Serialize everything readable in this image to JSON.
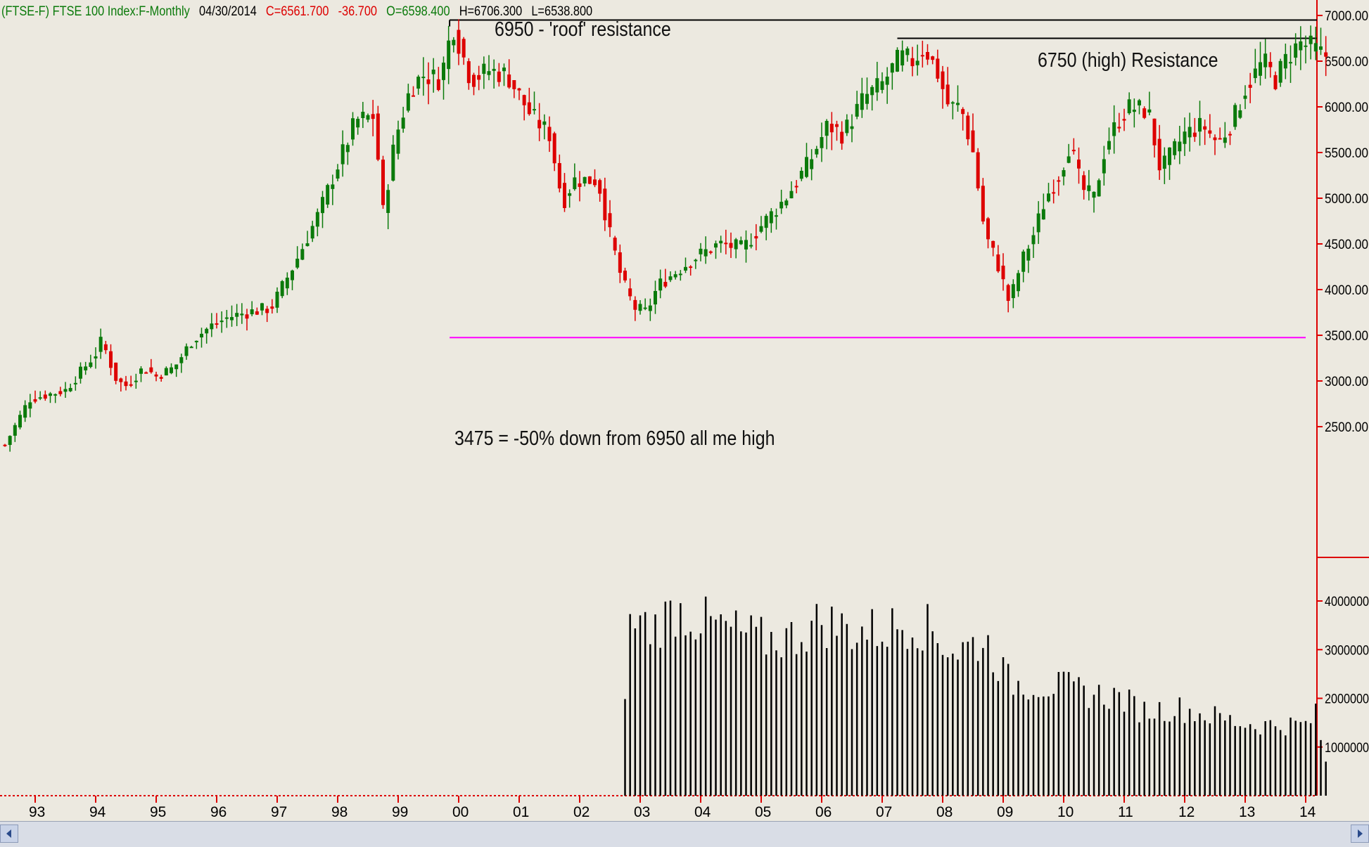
{
  "header": {
    "symbol": "(FTSE-F) FTSE 100 Index:F-Monthly",
    "date": "04/30/2014",
    "close": "C=6561.700",
    "change": "-36.700",
    "open": "O=6598.400",
    "high": "H=6706.300",
    "low": "L=6538.800",
    "colors": {
      "symbol": "#0b7a0b",
      "date": "#000000",
      "close": "#dd0000",
      "change": "#dd0000",
      "open": "#0b7a0b",
      "high": "#000000",
      "low": "#000000"
    }
  },
  "annotations": {
    "roof": "6950 - 'roof' resistance",
    "high_res": "6750 (high) Resistance",
    "support": "3475 = -50% down from 6950 all   me high"
  },
  "chart_data": {
    "type": "candlestick",
    "title": "(FTSE-F) FTSE 100 Index:F-Monthly",
    "interval": "Monthly",
    "x_tick_labels": [
      "93",
      "94",
      "95",
      "96",
      "97",
      "98",
      "99",
      "00",
      "01",
      "02",
      "03",
      "04",
      "05",
      "06",
      "07",
      "08",
      "09",
      "10",
      "11",
      "12",
      "13",
      "14"
    ],
    "x_range": [
      1992.4,
      2014.35
    ],
    "price_ticks": [
      "7000.00",
      "6500.00",
      "6000.00",
      "5500.00",
      "5000.00",
      "4500.00",
      "4000.00",
      "3500.00",
      "3000.00",
      "2500.00"
    ],
    "price_range": [
      2200,
      7100
    ],
    "volume_ticks": [
      "4000000",
      "3000000",
      "2000000",
      "1000000"
    ],
    "volume_range": [
      0,
      4500000
    ],
    "lines": [
      {
        "name": "roof",
        "value": 6950,
        "from": 1999.85,
        "to": 2014.35,
        "color": "#000000"
      },
      {
        "name": "high_res",
        "value": 6750,
        "from": 2007.25,
        "to": 2014.35,
        "color": "#000000"
      },
      {
        "name": "support",
        "value": 3475,
        "from": 1999.85,
        "to": 2014.0,
        "color": "#ff00ff"
      }
    ],
    "price_anchors": [
      [
        1992.5,
        2300
      ],
      [
        1992.9,
        2800
      ],
      [
        1993.5,
        2900
      ],
      [
        1994.0,
        3300
      ],
      [
        1994.1,
        3450
      ],
      [
        1994.35,
        3000
      ],
      [
        1994.5,
        2950
      ],
      [
        1994.8,
        3150
      ],
      [
        1995.0,
        3050
      ],
      [
        1995.3,
        3150
      ],
      [
        1995.6,
        3450
      ],
      [
        1995.9,
        3600
      ],
      [
        1996.2,
        3700
      ],
      [
        1996.5,
        3750
      ],
      [
        1996.9,
        3800
      ],
      [
        1997.3,
        4300
      ],
      [
        1997.7,
        4850
      ],
      [
        1997.9,
        5200
      ],
      [
        1998.3,
        5850
      ],
      [
        1998.6,
        5900
      ],
      [
        1998.75,
        4850
      ],
      [
        1998.95,
        5650
      ],
      [
        1999.2,
        6200
      ],
      [
        1999.4,
        6350
      ],
      [
        1999.7,
        6300
      ],
      [
        1999.9,
        6900
      ],
      [
        2000.2,
        6300
      ],
      [
        2000.5,
        6400
      ],
      [
        2000.8,
        6350
      ],
      [
        2001.2,
        5900
      ],
      [
        2001.5,
        5700
      ],
      [
        2001.72,
        4950
      ],
      [
        2001.9,
        5200
      ],
      [
        2002.3,
        5200
      ],
      [
        2002.5,
        4600
      ],
      [
        2002.7,
        4100
      ],
      [
        2002.9,
        3800
      ],
      [
        2003.1,
        3750
      ],
      [
        2003.3,
        4050
      ],
      [
        2003.6,
        4200
      ],
      [
        2003.9,
        4350
      ],
      [
        2004.3,
        4500
      ],
      [
        2004.7,
        4450
      ],
      [
        2005.0,
        4700
      ],
      [
        2005.4,
        5000
      ],
      [
        2005.8,
        5400
      ],
      [
        2006.1,
        5800
      ],
      [
        2006.35,
        5700
      ],
      [
        2006.7,
        6100
      ],
      [
        2007.0,
        6250
      ],
      [
        2007.3,
        6550
      ],
      [
        2007.5,
        6500
      ],
      [
        2007.7,
        6650
      ],
      [
        2007.9,
        6400
      ],
      [
        2008.1,
        6000
      ],
      [
        2008.3,
        6000
      ],
      [
        2008.5,
        5500
      ],
      [
        2008.7,
        4600
      ],
      [
        2008.9,
        4300
      ],
      [
        2009.1,
        3850
      ],
      [
        2009.3,
        4300
      ],
      [
        2009.5,
        4600
      ],
      [
        2009.7,
        5000
      ],
      [
        2009.95,
        5300
      ],
      [
        2010.1,
        5600
      ],
      [
        2010.3,
        5100
      ],
      [
        2010.5,
        5000
      ],
      [
        2010.7,
        5600
      ],
      [
        2010.95,
        5900
      ],
      [
        2011.1,
        6000
      ],
      [
        2011.4,
        5950
      ],
      [
        2011.6,
        5300
      ],
      [
        2011.8,
        5500
      ],
      [
        2012.0,
        5700
      ],
      [
        2012.3,
        5800
      ],
      [
        2012.55,
        5600
      ],
      [
        2012.8,
        5850
      ],
      [
        2013.0,
        6200
      ],
      [
        2013.3,
        6500
      ],
      [
        2013.5,
        6300
      ],
      [
        2013.7,
        6550
      ],
      [
        2013.9,
        6700
      ],
      [
        2014.1,
        6650
      ],
      [
        2014.3,
        6560
      ]
    ],
    "volume_anchors": [
      [
        2002.75,
        2350000
      ],
      [
        2002.85,
        3750000
      ],
      [
        2003.2,
        3550000
      ],
      [
        2003.6,
        3950000
      ],
      [
        2004.0,
        3700000
      ],
      [
        2004.5,
        3500000
      ],
      [
        2005.0,
        3300000
      ],
      [
        2005.5,
        3350000
      ],
      [
        2006.0,
        3700000
      ],
      [
        2006.5,
        3500000
      ],
      [
        2007.0,
        3500000
      ],
      [
        2007.5,
        3700000
      ],
      [
        2007.8,
        3500000
      ],
      [
        2008.2,
        3050000
      ],
      [
        2008.7,
        3300000
      ],
      [
        2009.1,
        2400000
      ],
      [
        2009.5,
        2350000
      ],
      [
        2010.0,
        2300000
      ],
      [
        2010.5,
        2150000
      ],
      [
        2010.9,
        2100000
      ],
      [
        2011.3,
        1800000
      ],
      [
        2011.9,
        1850000
      ],
      [
        2012.4,
        1700000
      ],
      [
        2012.9,
        1550000
      ],
      [
        2013.2,
        1500000
      ],
      [
        2013.6,
        1500000
      ],
      [
        2014.0,
        1500000
      ],
      [
        2014.2,
        1750000
      ],
      [
        2014.3,
        700000
      ]
    ]
  }
}
